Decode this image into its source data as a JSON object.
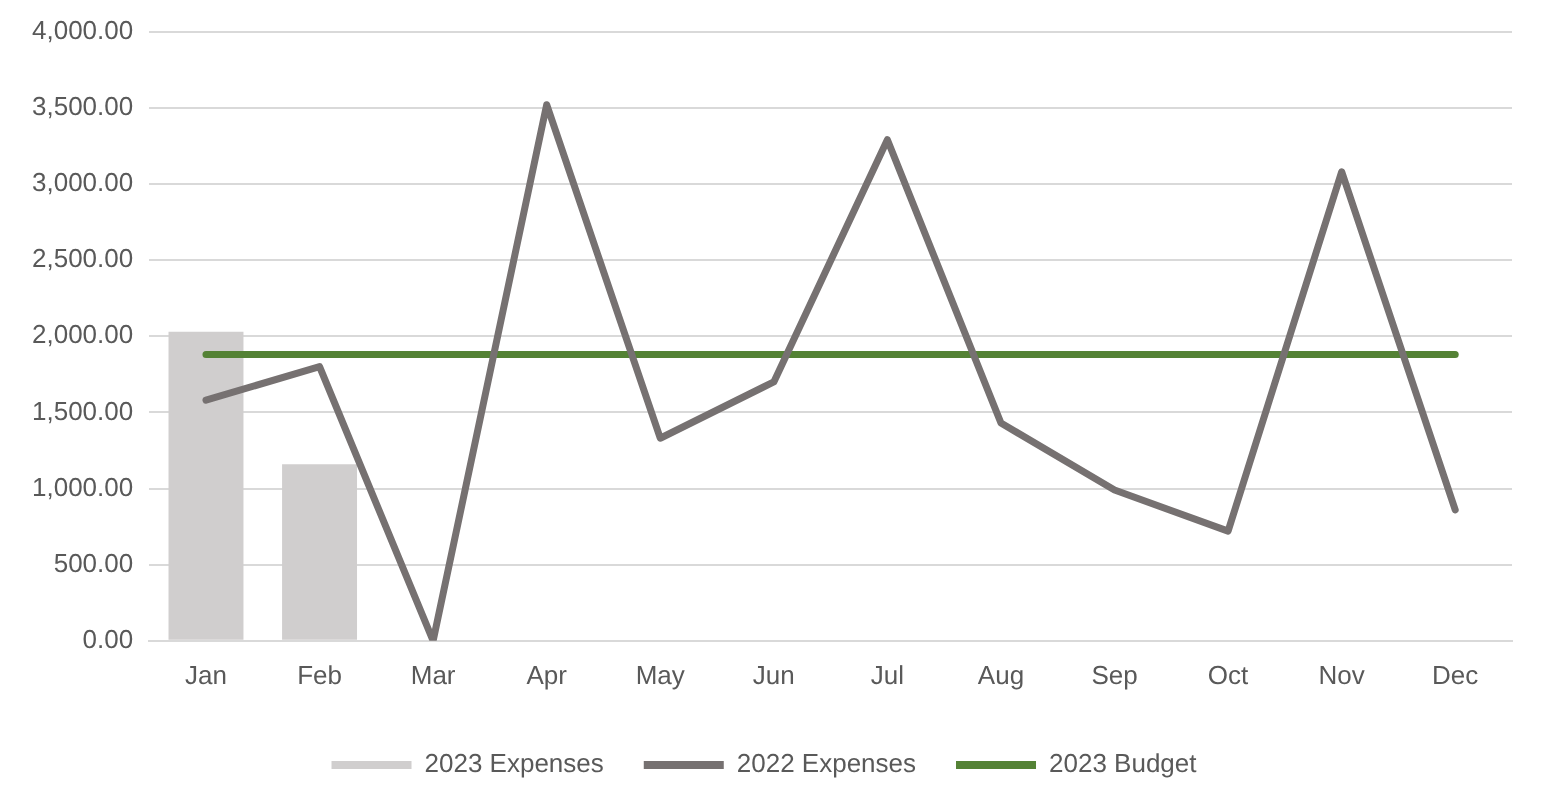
{
  "chart_data": {
    "type": "bar",
    "categories": [
      "Jan",
      "Feb",
      "Mar",
      "Apr",
      "May",
      "Jun",
      "Jul",
      "Aug",
      "Sep",
      "Oct",
      "Nov",
      "Dec"
    ],
    "series": [
      {
        "name": "2023 Expenses",
        "color": "#d0cece",
        "values": [
          2030,
          1160,
          null,
          null,
          null,
          null,
          null,
          null,
          null,
          null,
          null,
          null
        ]
      },
      {
        "name": "2022 Expenses",
        "type": "line",
        "color": "#767171",
        "values": [
          1580,
          1800,
          0,
          3520,
          1330,
          1700,
          3290,
          1430,
          990,
          720,
          3080,
          860
        ]
      },
      {
        "name": "2023 Budget",
        "type": "line",
        "color": "#548235",
        "values": [
          1880,
          1880,
          1880,
          1880,
          1880,
          1880,
          1880,
          1880,
          1880,
          1880,
          1880,
          1880
        ]
      }
    ],
    "ylim": [
      0,
      4000
    ],
    "yticks": [
      {
        "value": 0,
        "label": "0.00"
      },
      {
        "value": 500,
        "label": "500.00"
      },
      {
        "value": 1000,
        "label": "1,000.00"
      },
      {
        "value": 1500,
        "label": "1,500.00"
      },
      {
        "value": 2000,
        "label": "2,000.00"
      },
      {
        "value": 2500,
        "label": "2,500.00"
      },
      {
        "value": 3000,
        "label": "3,000.00"
      },
      {
        "value": 3500,
        "label": "3,500.00"
      },
      {
        "value": 4000,
        "label": "4,000.00"
      }
    ],
    "grid": "y",
    "legend": "bottom",
    "marker": "none",
    "line_style": "solid"
  }
}
